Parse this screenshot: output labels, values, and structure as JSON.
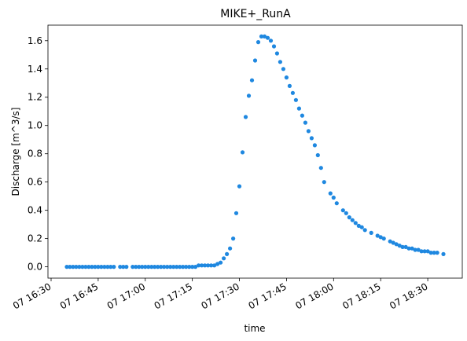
{
  "chart_data": {
    "type": "scatter",
    "title": "MIKE+_RunA",
    "xlabel": "time",
    "ylabel": "Discharge [m^3/s]",
    "color": "#1f88e0",
    "grid": false,
    "xlim": [
      "16:29",
      "18:41"
    ],
    "ylim": [
      -0.08,
      1.71
    ],
    "x_ticks": [
      {
        "t": "16:30",
        "label": "07 16:30"
      },
      {
        "t": "16:45",
        "label": "07 16:45"
      },
      {
        "t": "17:00",
        "label": "07 17:00"
      },
      {
        "t": "17:15",
        "label": "07 17:15"
      },
      {
        "t": "17:30",
        "label": "07 17:30"
      },
      {
        "t": "17:45",
        "label": "07 17:45"
      },
      {
        "t": "18:00",
        "label": "07 18:00"
      },
      {
        "t": "18:15",
        "label": "07 18:15"
      },
      {
        "t": "18:30",
        "label": "07 18:30"
      }
    ],
    "y_ticks": [
      "0.0",
      "0.2",
      "0.4",
      "0.6",
      "0.8",
      "1.0",
      "1.2",
      "1.4",
      "1.6"
    ],
    "series": [
      {
        "points": [
          [
            "16:35",
            0.0
          ],
          [
            "16:36",
            0.0
          ],
          [
            "16:37",
            0.0
          ],
          [
            "16:38",
            0.0
          ],
          [
            "16:39",
            0.0
          ],
          [
            "16:40",
            0.0
          ],
          [
            "16:41",
            0.0
          ],
          [
            "16:42",
            0.0
          ],
          [
            "16:43",
            0.0
          ],
          [
            "16:44",
            0.0
          ],
          [
            "16:45",
            0.0
          ],
          [
            "16:46",
            0.0
          ],
          [
            "16:47",
            0.0
          ],
          [
            "16:48",
            0.0
          ],
          [
            "16:49",
            0.0
          ],
          [
            "16:50",
            0.0
          ],
          [
            "16:52",
            0.0
          ],
          [
            "16:53",
            0.0
          ],
          [
            "16:54",
            0.0
          ],
          [
            "16:56",
            0.0
          ],
          [
            "16:57",
            0.0
          ],
          [
            "16:58",
            0.0
          ],
          [
            "16:59",
            0.0
          ],
          [
            "17:00",
            0.0
          ],
          [
            "17:01",
            0.0
          ],
          [
            "17:02",
            0.0
          ],
          [
            "17:03",
            0.0
          ],
          [
            "17:04",
            0.0
          ],
          [
            "17:05",
            0.0
          ],
          [
            "17:06",
            0.0
          ],
          [
            "17:07",
            0.0
          ],
          [
            "17:08",
            0.0
          ],
          [
            "17:09",
            0.0
          ],
          [
            "17:10",
            0.0
          ],
          [
            "17:11",
            0.0
          ],
          [
            "17:12",
            0.0
          ],
          [
            "17:13",
            0.0
          ],
          [
            "17:14",
            0.0
          ],
          [
            "17:15",
            0.0
          ],
          [
            "17:16",
            0.0
          ],
          [
            "17:17",
            0.01
          ],
          [
            "17:18",
            0.01
          ],
          [
            "17:19",
            0.01
          ],
          [
            "17:20",
            0.01
          ],
          [
            "17:21",
            0.01
          ],
          [
            "17:22",
            0.01
          ],
          [
            "17:23",
            0.02
          ],
          [
            "17:24",
            0.03
          ],
          [
            "17:25",
            0.06
          ],
          [
            "17:26",
            0.09
          ],
          [
            "17:27",
            0.13
          ],
          [
            "17:28",
            0.2
          ],
          [
            "17:29",
            0.38
          ],
          [
            "17:30",
            0.57
          ],
          [
            "17:31",
            0.81
          ],
          [
            "17:32",
            1.06
          ],
          [
            "17:33",
            1.21
          ],
          [
            "17:34",
            1.32
          ],
          [
            "17:35",
            1.46
          ],
          [
            "17:36",
            1.59
          ],
          [
            "17:37",
            1.63
          ],
          [
            "17:38",
            1.63
          ],
          [
            "17:39",
            1.62
          ],
          [
            "17:40",
            1.6
          ],
          [
            "17:41",
            1.56
          ],
          [
            "17:42",
            1.51
          ],
          [
            "17:43",
            1.45
          ],
          [
            "17:44",
            1.4
          ],
          [
            "17:45",
            1.34
          ],
          [
            "17:46",
            1.28
          ],
          [
            "17:47",
            1.23
          ],
          [
            "17:48",
            1.18
          ],
          [
            "17:49",
            1.12
          ],
          [
            "17:50",
            1.07
          ],
          [
            "17:51",
            1.02
          ],
          [
            "17:52",
            0.96
          ],
          [
            "17:53",
            0.91
          ],
          [
            "17:54",
            0.86
          ],
          [
            "17:55",
            0.79
          ],
          [
            "17:56",
            0.7
          ],
          [
            "17:57",
            0.6
          ],
          [
            "17:59",
            0.52
          ],
          [
            "18:00",
            0.49
          ],
          [
            "18:01",
            0.45
          ],
          [
            "18:03",
            0.4
          ],
          [
            "18:04",
            0.38
          ],
          [
            "18:05",
            0.35
          ],
          [
            "18:06",
            0.33
          ],
          [
            "18:07",
            0.31
          ],
          [
            "18:08",
            0.29
          ],
          [
            "18:09",
            0.28
          ],
          [
            "18:10",
            0.26
          ],
          [
            "18:12",
            0.24
          ],
          [
            "18:14",
            0.22
          ],
          [
            "18:15",
            0.21
          ],
          [
            "18:16",
            0.2
          ],
          [
            "18:18",
            0.18
          ],
          [
            "18:19",
            0.17
          ],
          [
            "18:20",
            0.16
          ],
          [
            "18:21",
            0.15
          ],
          [
            "18:22",
            0.14
          ],
          [
            "18:23",
            0.14
          ],
          [
            "18:24",
            0.13
          ],
          [
            "18:25",
            0.13
          ],
          [
            "18:26",
            0.12
          ],
          [
            "18:27",
            0.12
          ],
          [
            "18:28",
            0.11
          ],
          [
            "18:29",
            0.11
          ],
          [
            "18:30",
            0.11
          ],
          [
            "18:31",
            0.1
          ],
          [
            "18:32",
            0.1
          ],
          [
            "18:33",
            0.1
          ],
          [
            "18:35",
            0.09
          ]
        ]
      }
    ]
  }
}
